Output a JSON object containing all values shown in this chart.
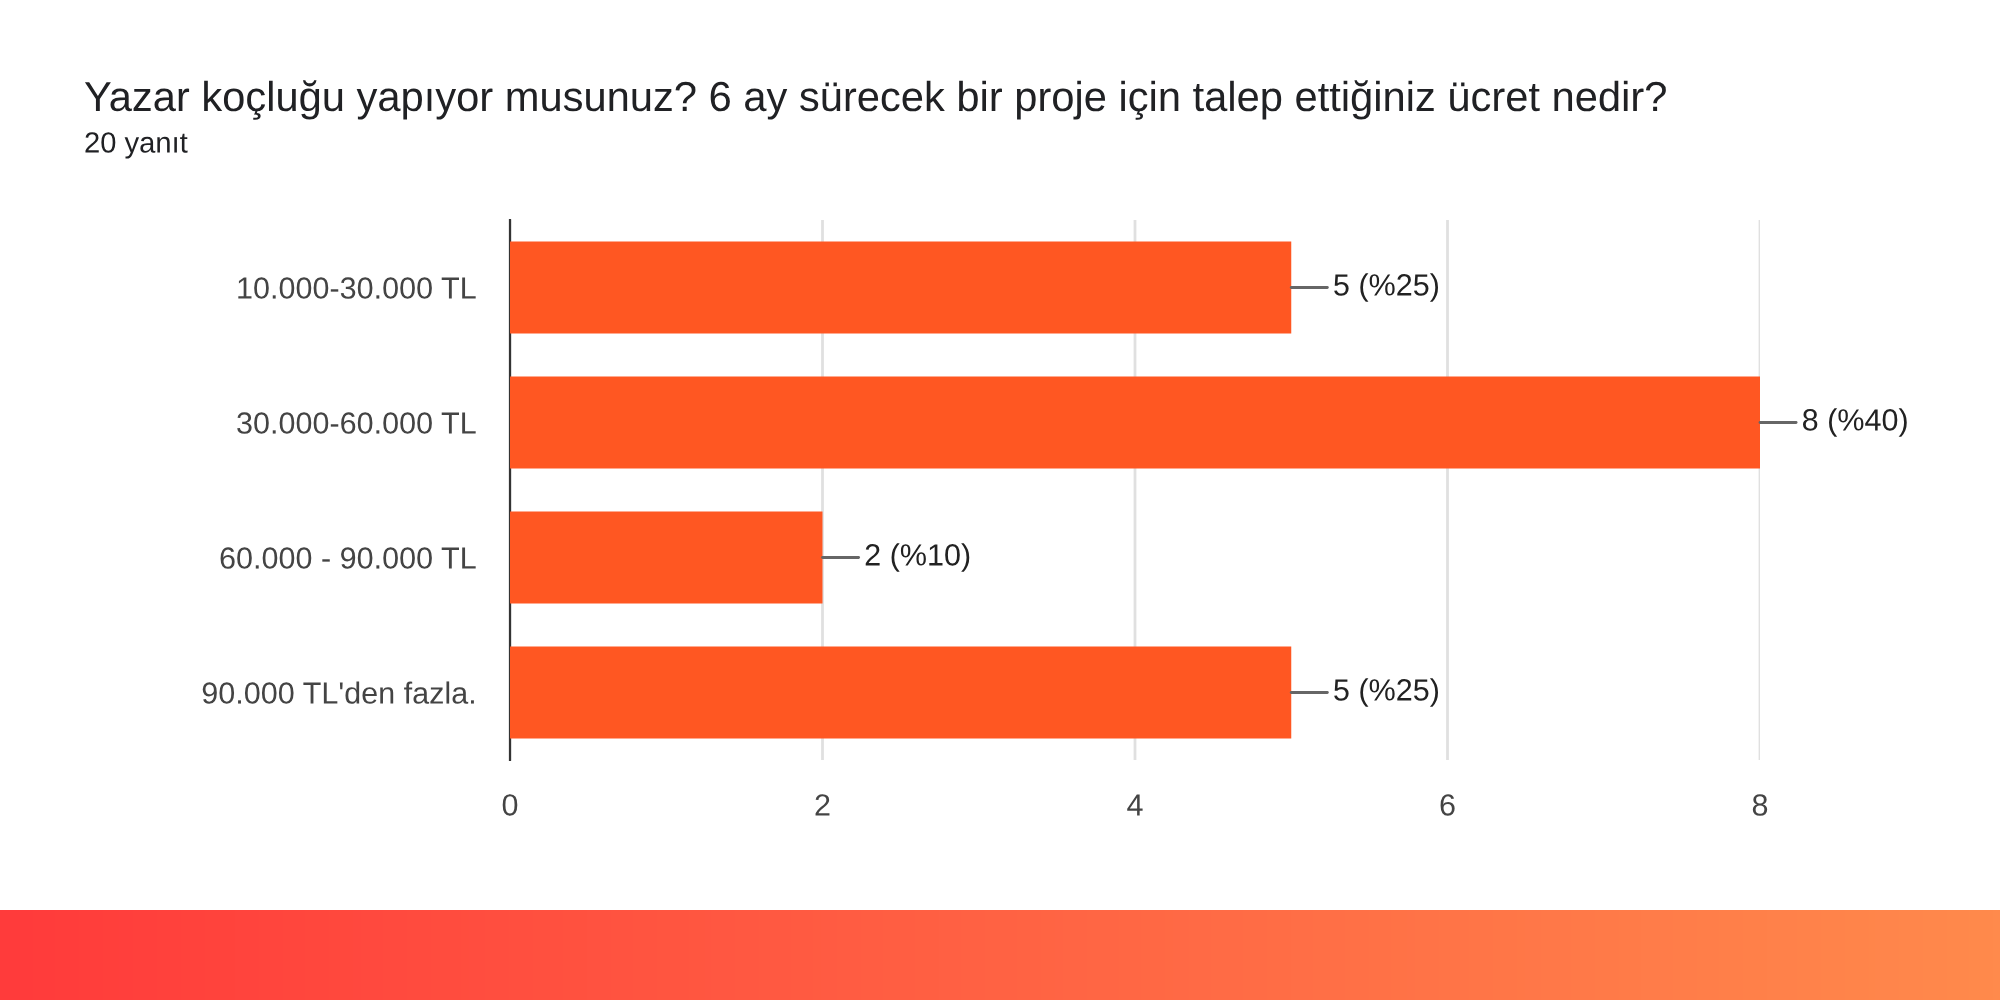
{
  "chart_data": {
    "type": "bar",
    "orientation": "horizontal",
    "title": "Yazar koçluğu yapıyor musunuz? 6 ay sürecek bir proje için talep ettiğiniz ücret nedir?",
    "subtitle": "20 yanıt",
    "categories": [
      "10.000-30.000 TL",
      "30.000-60.000 TL",
      "60.000 - 90.000 TL",
      "90.000 TL'den fazla."
    ],
    "values": [
      5,
      8,
      2,
      5
    ],
    "color": "#ff5722",
    "value_labels": [
      "5 (%25)",
      "8 (%40)",
      "2 (%10)",
      "5 (%25)"
    ],
    "xlim": [
      0,
      8
    ],
    "xticks": [
      0,
      2,
      4,
      6,
      8
    ],
    "grid": "x"
  }
}
